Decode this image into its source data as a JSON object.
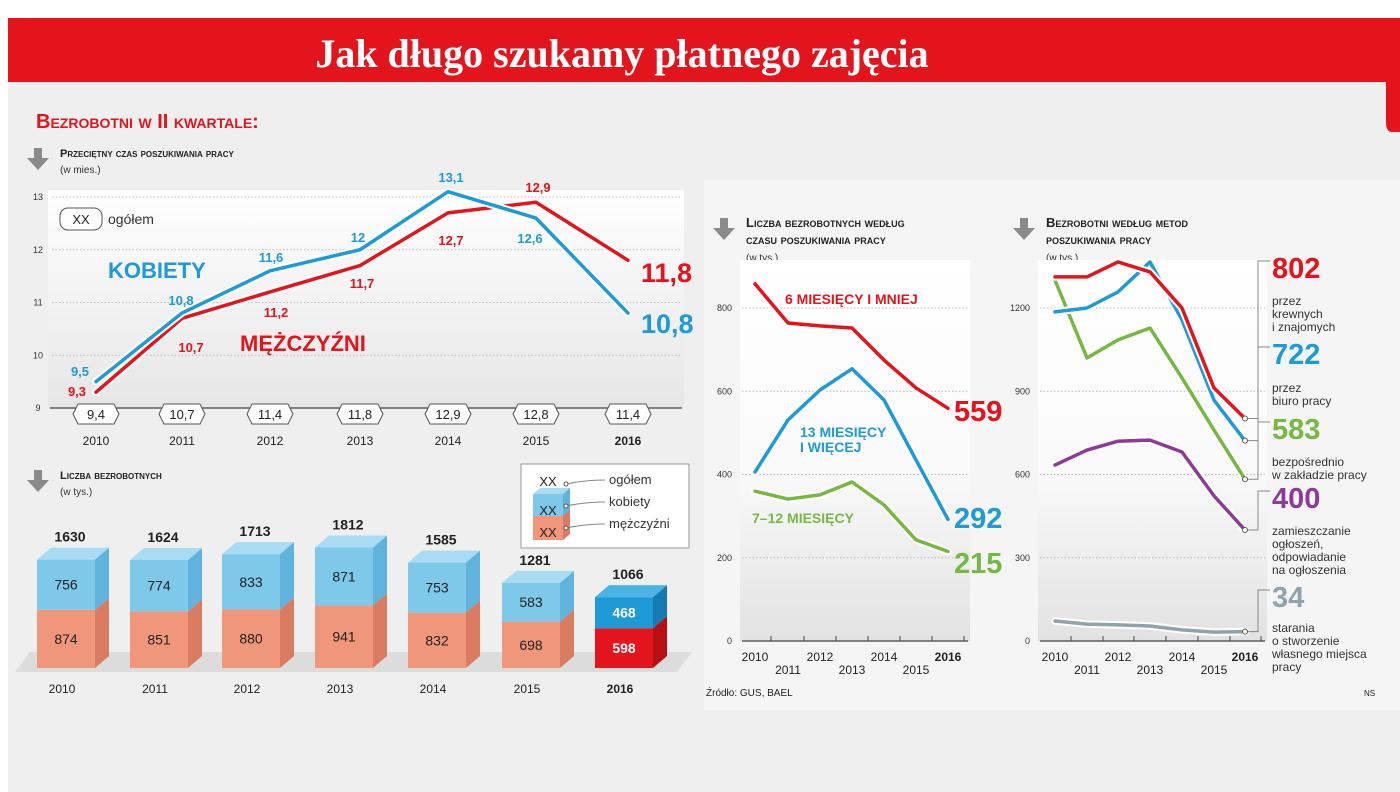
{
  "title": "Jak długo szukamy płatnego zajęcia",
  "section_title": "Bezrobotni w II kwartale:",
  "source": "Źródło: GUS, BAEL",
  "credit": "NS",
  "colors": {
    "banner": "#e3141b",
    "background": "#efefef",
    "women": "#1e9ad6",
    "men": "#e3141b",
    "women_light": "#7ec8ea",
    "men_light": "#f0967a",
    "green": "#77b843",
    "purple": "#8e3b97",
    "gray": "#8fa3ad",
    "arrow": "#8a8a8a"
  },
  "icons": {
    "section_arrow": "arrow-down-icon"
  },
  "chart_data": [
    {
      "type": "line",
      "title": "Przeciętny czas poszukiwania pracy",
      "ylabel": "(w mies.)",
      "categories": [
        "2010",
        "2011",
        "2012",
        "2013",
        "2014",
        "2015",
        "2016"
      ],
      "ylim": [
        9,
        13
      ],
      "yticks": [
        9,
        10,
        11,
        12,
        13
      ],
      "grid": true,
      "legend": {
        "box": "XX",
        "label": "ogółem"
      },
      "labels": [
        "9,4",
        "10,7",
        "11,4",
        "11,8",
        "12,9",
        "12,8",
        "11,4"
      ],
      "totals": [
        9.4,
        10.7,
        11.4,
        11.8,
        12.9,
        12.8,
        11.4
      ],
      "series": [
        {
          "name": "KOBIETY",
          "color": "#1e9ad6",
          "values": [
            9.5,
            10.8,
            11.6,
            12,
            13.1,
            12.6,
            10.8
          ],
          "labels": [
            "9,5",
            "10,8",
            "11,6",
            "12",
            "13,1",
            "12,6",
            "10,8"
          ]
        },
        {
          "name": "MĘŻCZYŹNI",
          "color": "#e3141b",
          "values": [
            9.3,
            10.7,
            11.2,
            11.7,
            12.7,
            12.9,
            11.8
          ],
          "labels": [
            "9,3",
            "10,7",
            "11,2",
            "11,7",
            "12,7",
            "12,9",
            "11,8"
          ]
        }
      ]
    },
    {
      "type": "bar",
      "stacked": true,
      "title": "Liczba bezrobotnych",
      "ylabel": "(w tys.)",
      "categories": [
        "2010",
        "2011",
        "2012",
        "2013",
        "2014",
        "2015",
        "2016"
      ],
      "legend": {
        "box": "XX",
        "items": [
          "ogółem",
          "kobiety",
          "mężczyźni"
        ]
      },
      "totals": [
        1630,
        1624,
        1713,
        1812,
        1585,
        1281,
        1066
      ],
      "series": [
        {
          "name": "mężczyźni",
          "values": [
            874,
            851,
            880,
            941,
            832,
            698,
            598
          ]
        },
        {
          "name": "kobiety",
          "values": [
            756,
            774,
            833,
            871,
            753,
            583,
            468
          ]
        }
      ]
    },
    {
      "type": "line",
      "title": "Liczba bezrobotnych według czasu poszukiwania pracy",
      "ylabel": "(w tys.)",
      "categories": [
        "2010",
        "2011",
        "2012",
        "2013",
        "2014",
        "2015",
        "2016"
      ],
      "ylim": [
        0,
        880
      ],
      "yticks": [
        0,
        200,
        400,
        600,
        800
      ],
      "grid": true,
      "series": [
        {
          "name": "6 MIESIĘCY I MNIEJ",
          "color": "#e3141b",
          "values": [
            858,
            764,
            757,
            752,
            675,
            608,
            559
          ],
          "end_label": "559"
        },
        {
          "name": "13 MIESIĘCY I WIĘCEJ",
          "color": "#1e9ad6",
          "values": [
            406,
            531,
            603,
            654,
            579,
            435,
            292
          ],
          "end_label": "292"
        },
        {
          "name": "7–12 MIESIĘCY",
          "color": "#77b843",
          "values": [
            360,
            341,
            351,
            382,
            327,
            243,
            215
          ],
          "end_label": "215"
        }
      ]
    },
    {
      "type": "line",
      "title": "Bezrobotni według metod poszukiwania pracy",
      "ylabel": "(w tys.)",
      "categories": [
        "2010",
        "2011",
        "2012",
        "2013",
        "2014",
        "2015",
        "2016"
      ],
      "ylim": [
        0,
        1380
      ],
      "yticks": [
        0,
        300,
        600,
        900,
        1200
      ],
      "grid": true,
      "series": [
        {
          "name": "przez krewnych i znajomych",
          "lines": [
            "przez",
            "krewnych",
            "i znajomych"
          ],
          "color": "#e3141b",
          "values": [
            1312,
            1312,
            1366,
            1330,
            1200,
            912,
            802
          ],
          "end_label": "802"
        },
        {
          "name": "przez biuro pracy",
          "lines": [
            "przez",
            "biuro pracy"
          ],
          "color": "#1e9ad6",
          "values": [
            1186,
            1200,
            1258,
            1366,
            1157,
            868,
            722
          ],
          "end_label": "722"
        },
        {
          "name": "bezpośrednio w zakładzie pracy",
          "lines": [
            "bezpośrednio",
            "w zakładzie pracy"
          ],
          "color": "#77b843",
          "values": [
            1300,
            1020,
            1085,
            1128,
            948,
            760,
            583
          ],
          "end_label": "583"
        },
        {
          "name": "zamieszczanie ogłoszeń, odpowiadanie na ogłoszenia",
          "lines": [
            "zamieszczanie",
            "ogłoszeń,",
            "odpowiadanie",
            "na ogłoszenia"
          ],
          "color": "#8e3b97",
          "values": [
            634,
            688,
            720,
            724,
            681,
            523,
            400
          ],
          "end_label": "400"
        },
        {
          "name": "starania o stworzenie własnego miejsca pracy",
          "lines": [
            "starania",
            "o stworzenie",
            "własnego miejsca",
            "pracy"
          ],
          "color": "#8fa3ad",
          "values": [
            72,
            61,
            58,
            54,
            40,
            32,
            34
          ],
          "end_label": "34"
        }
      ]
    }
  ]
}
